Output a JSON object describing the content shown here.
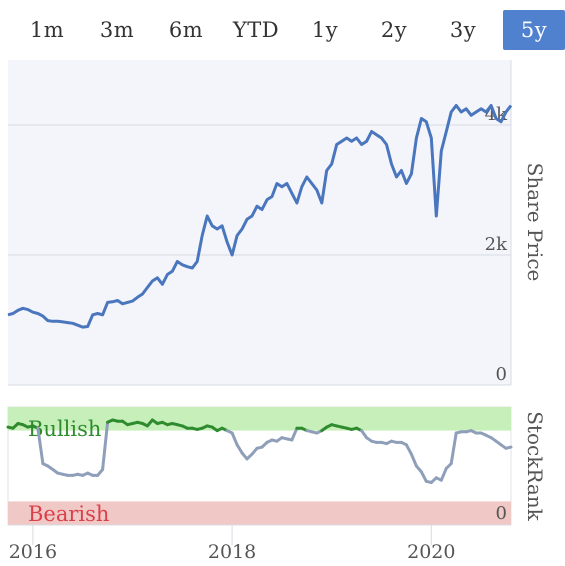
{
  "tabs": [
    {
      "label": "1m",
      "active": false
    },
    {
      "label": "3m",
      "active": false
    },
    {
      "label": "6m",
      "active": false
    },
    {
      "label": "YTD",
      "active": false
    },
    {
      "label": "1y",
      "active": false
    },
    {
      "label": "2y",
      "active": false
    },
    {
      "label": "3y",
      "active": false
    },
    {
      "label": "5y",
      "active": true
    }
  ],
  "colors": {
    "price_line": "#4a76be",
    "bullish_line": "#2e8b2e",
    "neutral_line": "#8f9fb9",
    "bullish_band": "#c7efb9",
    "bearish_band": "#f0c9c6",
    "bullish_text": "#2e8b2e",
    "bearish_text": "#d9404a",
    "tab_active_bg": "#4f81cf"
  },
  "chart_data": [
    {
      "type": "line",
      "title": "",
      "ylabel": "Share Price",
      "ylim": [
        0,
        5000
      ],
      "y_ticks": [
        "0",
        "2k",
        "4k"
      ],
      "grid": true,
      "x_ticks": [
        "2016",
        "2018",
        "2020"
      ],
      "xlim": [
        2015.75,
        2020.8
      ],
      "series": [
        {
          "x": [
            2015.75,
            2015.8,
            2015.85,
            2015.9,
            2015.95,
            2016.0,
            2016.05,
            2016.1,
            2016.15,
            2016.2,
            2016.25,
            2016.3,
            2016.35,
            2016.4,
            2016.45,
            2016.5,
            2016.55,
            2016.6,
            2016.65,
            2016.7,
            2016.75,
            2016.8,
            2016.85,
            2016.9,
            2016.95,
            2017.0,
            2017.05,
            2017.1,
            2017.15,
            2017.2,
            2017.25,
            2017.3,
            2017.35,
            2017.4,
            2017.45,
            2017.5,
            2017.55,
            2017.6,
            2017.65,
            2017.7,
            2017.75,
            2017.8,
            2017.85,
            2017.9,
            2017.95,
            2018.0,
            2018.05,
            2018.1,
            2018.15,
            2018.2,
            2018.25,
            2018.3,
            2018.35,
            2018.4,
            2018.45,
            2018.5,
            2018.55,
            2018.6,
            2018.65,
            2018.7,
            2018.75,
            2018.8,
            2018.85,
            2018.9,
            2018.95,
            2019.0,
            2019.05,
            2019.1,
            2019.15,
            2019.2,
            2019.25,
            2019.3,
            2019.35,
            2019.4,
            2019.45,
            2019.5,
            2019.55,
            2019.6,
            2019.65,
            2019.7,
            2019.75,
            2019.8,
            2019.85,
            2019.9,
            2019.95,
            2020.0,
            2020.05,
            2020.1,
            2020.15,
            2020.2,
            2020.25,
            2020.3,
            2020.35,
            2020.4,
            2020.45,
            2020.5,
            2020.55,
            2020.6,
            2020.65,
            2020.7,
            2020.75,
            2020.8
          ],
          "values": [
            1080,
            1100,
            1150,
            1180,
            1160,
            1120,
            1100,
            1060,
            990,
            980,
            980,
            970,
            960,
            950,
            920,
            890,
            900,
            1080,
            1100,
            1080,
            1270,
            1280,
            1300,
            1250,
            1270,
            1290,
            1350,
            1400,
            1500,
            1600,
            1650,
            1550,
            1700,
            1750,
            1900,
            1850,
            1820,
            1800,
            1900,
            2300,
            2600,
            2450,
            2400,
            2450,
            2200,
            2000,
            2300,
            2400,
            2550,
            2600,
            2750,
            2700,
            2850,
            2900,
            3100,
            3050,
            3100,
            2950,
            2800,
            3050,
            3200,
            3100,
            3000,
            2800,
            3300,
            3400,
            3700,
            3750,
            3800,
            3750,
            3800,
            3700,
            3750,
            3900,
            3850,
            3800,
            3700,
            3400,
            3200,
            3300,
            3100,
            3250,
            3800,
            4100,
            4050,
            3800,
            2600,
            3600,
            3900,
            4200,
            4300,
            4200,
            4250,
            4150,
            4200,
            4250,
            4200,
            4300,
            4100,
            4050,
            4200,
            4300
          ]
        }
      ]
    },
    {
      "type": "line",
      "title": "",
      "ylabel": "StockRank",
      "ylim": [
        0,
        100
      ],
      "y_ticks": [
        "0"
      ],
      "bands": [
        {
          "label": "Bullish",
          "from": 80,
          "to": 100
        },
        {
          "label": "Bearish",
          "from": 0,
          "to": 20
        }
      ],
      "series": [
        {
          "x": [
            2015.75,
            2015.8,
            2015.85,
            2015.9,
            2015.95,
            2016.0,
            2016.05,
            2016.1,
            2016.15,
            2016.2,
            2016.25,
            2016.3,
            2016.35,
            2016.4,
            2016.45,
            2016.5,
            2016.55,
            2016.6,
            2016.65,
            2016.7,
            2016.75,
            2016.8,
            2016.85,
            2016.9,
            2016.95,
            2017.0,
            2017.05,
            2017.1,
            2017.15,
            2017.2,
            2017.25,
            2017.3,
            2017.35,
            2017.4,
            2017.45,
            2017.5,
            2017.55,
            2017.6,
            2017.65,
            2017.7,
            2017.75,
            2017.8,
            2017.85,
            2017.9,
            2017.95,
            2018.0,
            2018.05,
            2018.1,
            2018.15,
            2018.2,
            2018.25,
            2018.3,
            2018.35,
            2018.4,
            2018.45,
            2018.5,
            2018.55,
            2018.6,
            2018.65,
            2018.7,
            2018.75,
            2018.8,
            2018.85,
            2018.9,
            2018.95,
            2019.0,
            2019.05,
            2019.1,
            2019.15,
            2019.2,
            2019.25,
            2019.3,
            2019.35,
            2019.4,
            2019.45,
            2019.5,
            2019.55,
            2019.6,
            2019.65,
            2019.7,
            2019.75,
            2019.8,
            2019.85,
            2019.9,
            2019.95,
            2020.0,
            2020.05,
            2020.1,
            2020.15,
            2020.2,
            2020.25,
            2020.3,
            2020.35,
            2020.4,
            2020.45,
            2020.5,
            2020.55,
            2020.6,
            2020.65,
            2020.7,
            2020.75,
            2020.8
          ],
          "values": [
            83,
            82,
            86,
            85,
            83,
            84,
            82,
            52,
            50,
            47,
            44,
            43,
            42,
            42,
            43,
            42,
            44,
            42,
            42,
            47,
            87,
            89,
            88,
            88,
            85,
            86,
            87,
            86,
            84,
            89,
            86,
            87,
            85,
            86,
            85,
            84,
            82,
            82,
            81,
            82,
            84,
            83,
            80,
            82,
            80,
            78,
            68,
            61,
            56,
            60,
            65,
            66,
            70,
            72,
            71,
            74,
            73,
            72,
            82,
            82,
            80,
            79,
            78,
            80,
            83,
            85,
            84,
            83,
            82,
            81,
            82,
            80,
            74,
            71,
            70,
            70,
            69,
            71,
            70,
            70,
            68,
            60,
            50,
            45,
            37,
            36,
            40,
            38,
            48,
            52,
            78,
            79,
            79,
            80,
            78,
            78,
            76,
            74,
            71,
            68,
            65,
            66
          ]
        }
      ]
    }
  ]
}
